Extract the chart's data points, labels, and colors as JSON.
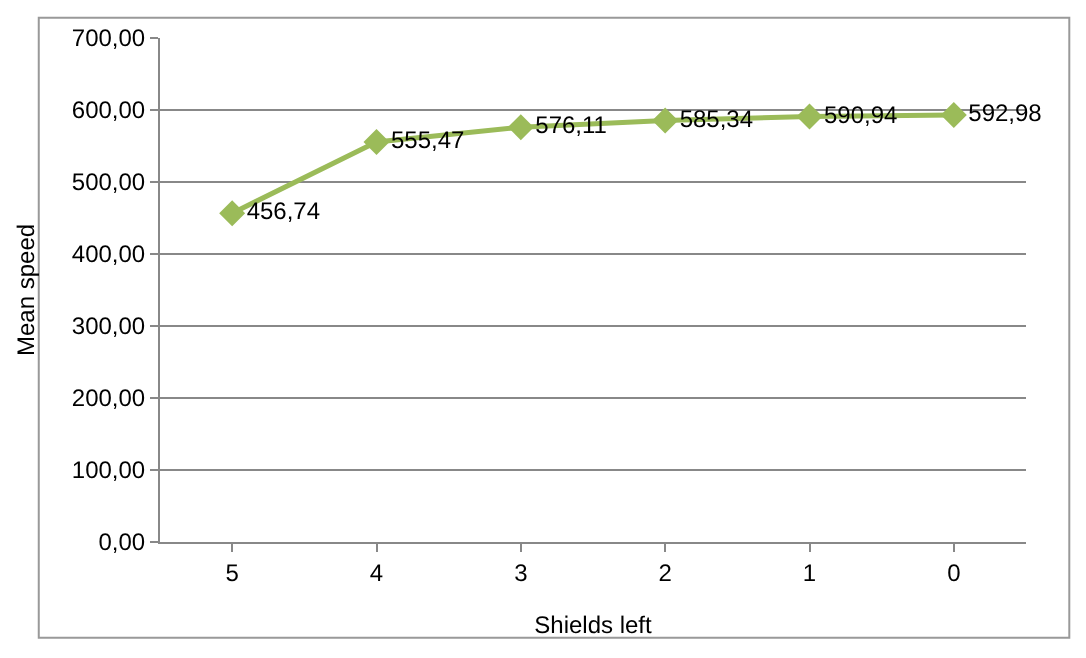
{
  "chart_data": {
    "type": "line",
    "xlabel": "Shields left",
    "ylabel": "Mean speed",
    "categories": [
      "5",
      "4",
      "3",
      "2",
      "1",
      "0"
    ],
    "series": [
      {
        "color": "#9bbb59",
        "values": [
          456.74,
          555.47,
          576.11,
          585.34,
          590.94,
          592.98
        ],
        "value_labels": [
          "456,74",
          "555,47",
          "576,11",
          "585,34",
          "590,94",
          "592,98"
        ]
      }
    ],
    "ylim": [
      0,
      700
    ],
    "yticks": [
      {
        "value": 0,
        "label": "0,00"
      },
      {
        "value": 100,
        "label": "100,00"
      },
      {
        "value": 200,
        "label": "200,00"
      },
      {
        "value": 300,
        "label": "300,00"
      },
      {
        "value": 400,
        "label": "400,00"
      },
      {
        "value": 500,
        "label": "500,00"
      },
      {
        "value": 600,
        "label": "600,00"
      },
      {
        "value": 700,
        "label": "700,00"
      }
    ],
    "grid": "y",
    "legend": false,
    "marker": "diamond",
    "line_style": "solid"
  }
}
